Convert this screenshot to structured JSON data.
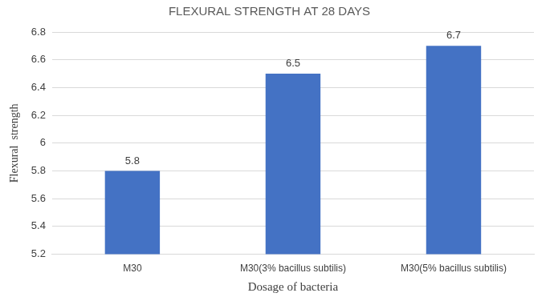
{
  "chart_data": {
    "type": "bar",
    "title": "FLEXURAL STRENGTH AT 28 DAYS",
    "x_label": "Dosage of bacteria",
    "y_label": "Flexural  strength",
    "categories": [
      "M30",
      "M30(3% bacillus subtilis)",
      "M30(5% bacillus subtilis)"
    ],
    "values": [
      5.8,
      6.5,
      6.7
    ],
    "color": "#4472c4",
    "ylim": [
      5.2,
      6.8
    ],
    "yticks": [
      5.2,
      5.4,
      5.6,
      5.8,
      6,
      6.2,
      6.4,
      6.6,
      6.8
    ],
    "grid": true,
    "data_labels": true
  }
}
